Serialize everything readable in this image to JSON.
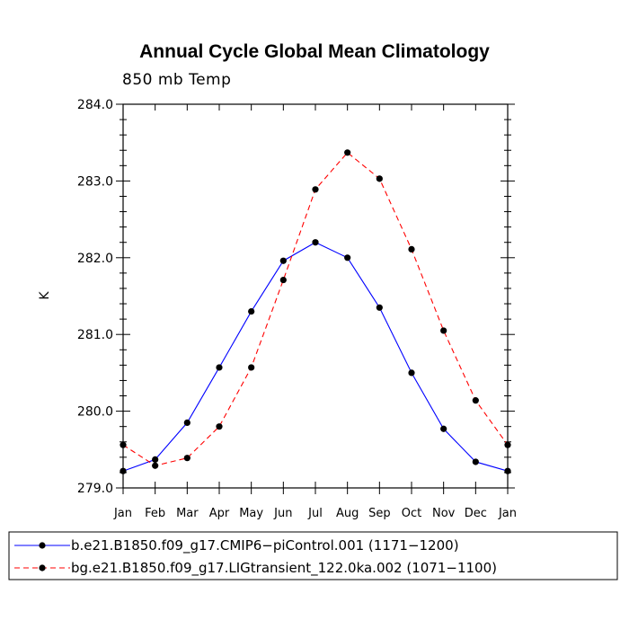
{
  "chart_data": {
    "type": "line",
    "title": "Annual Cycle Global Mean Climatology",
    "subtitle": "850 mb Temp",
    "xlabel": "",
    "ylabel": "K",
    "categories": [
      "Jan",
      "Feb",
      "Mar",
      "Apr",
      "May",
      "Jun",
      "Jul",
      "Aug",
      "Sep",
      "Oct",
      "Nov",
      "Dec",
      "Jan"
    ],
    "ylim": [
      279.0,
      284.0
    ],
    "yticks": [
      "279.0",
      "280.0",
      "281.0",
      "282.0",
      "283.0",
      "284.0"
    ],
    "grid": false,
    "legend_position": "bottom",
    "series": [
      {
        "name": "b.e21.B1850.f09_g17.CMIP6−piControl.001 (1171−1200)",
        "color": "#0000ff",
        "dash": "solid",
        "values": [
          279.22,
          279.37,
          279.85,
          280.57,
          281.3,
          281.96,
          282.2,
          282.0,
          281.35,
          280.5,
          279.77,
          279.34,
          279.22
        ]
      },
      {
        "name": "bg.e21.B1850.f09_g17.LIGtransient_122.0ka.002 (1071−1100)",
        "color": "#ff0000",
        "dash": "dashed",
        "values": [
          279.56,
          279.29,
          279.39,
          279.8,
          280.57,
          281.71,
          282.89,
          283.37,
          283.03,
          282.11,
          281.05,
          280.14,
          279.56
        ]
      }
    ]
  }
}
